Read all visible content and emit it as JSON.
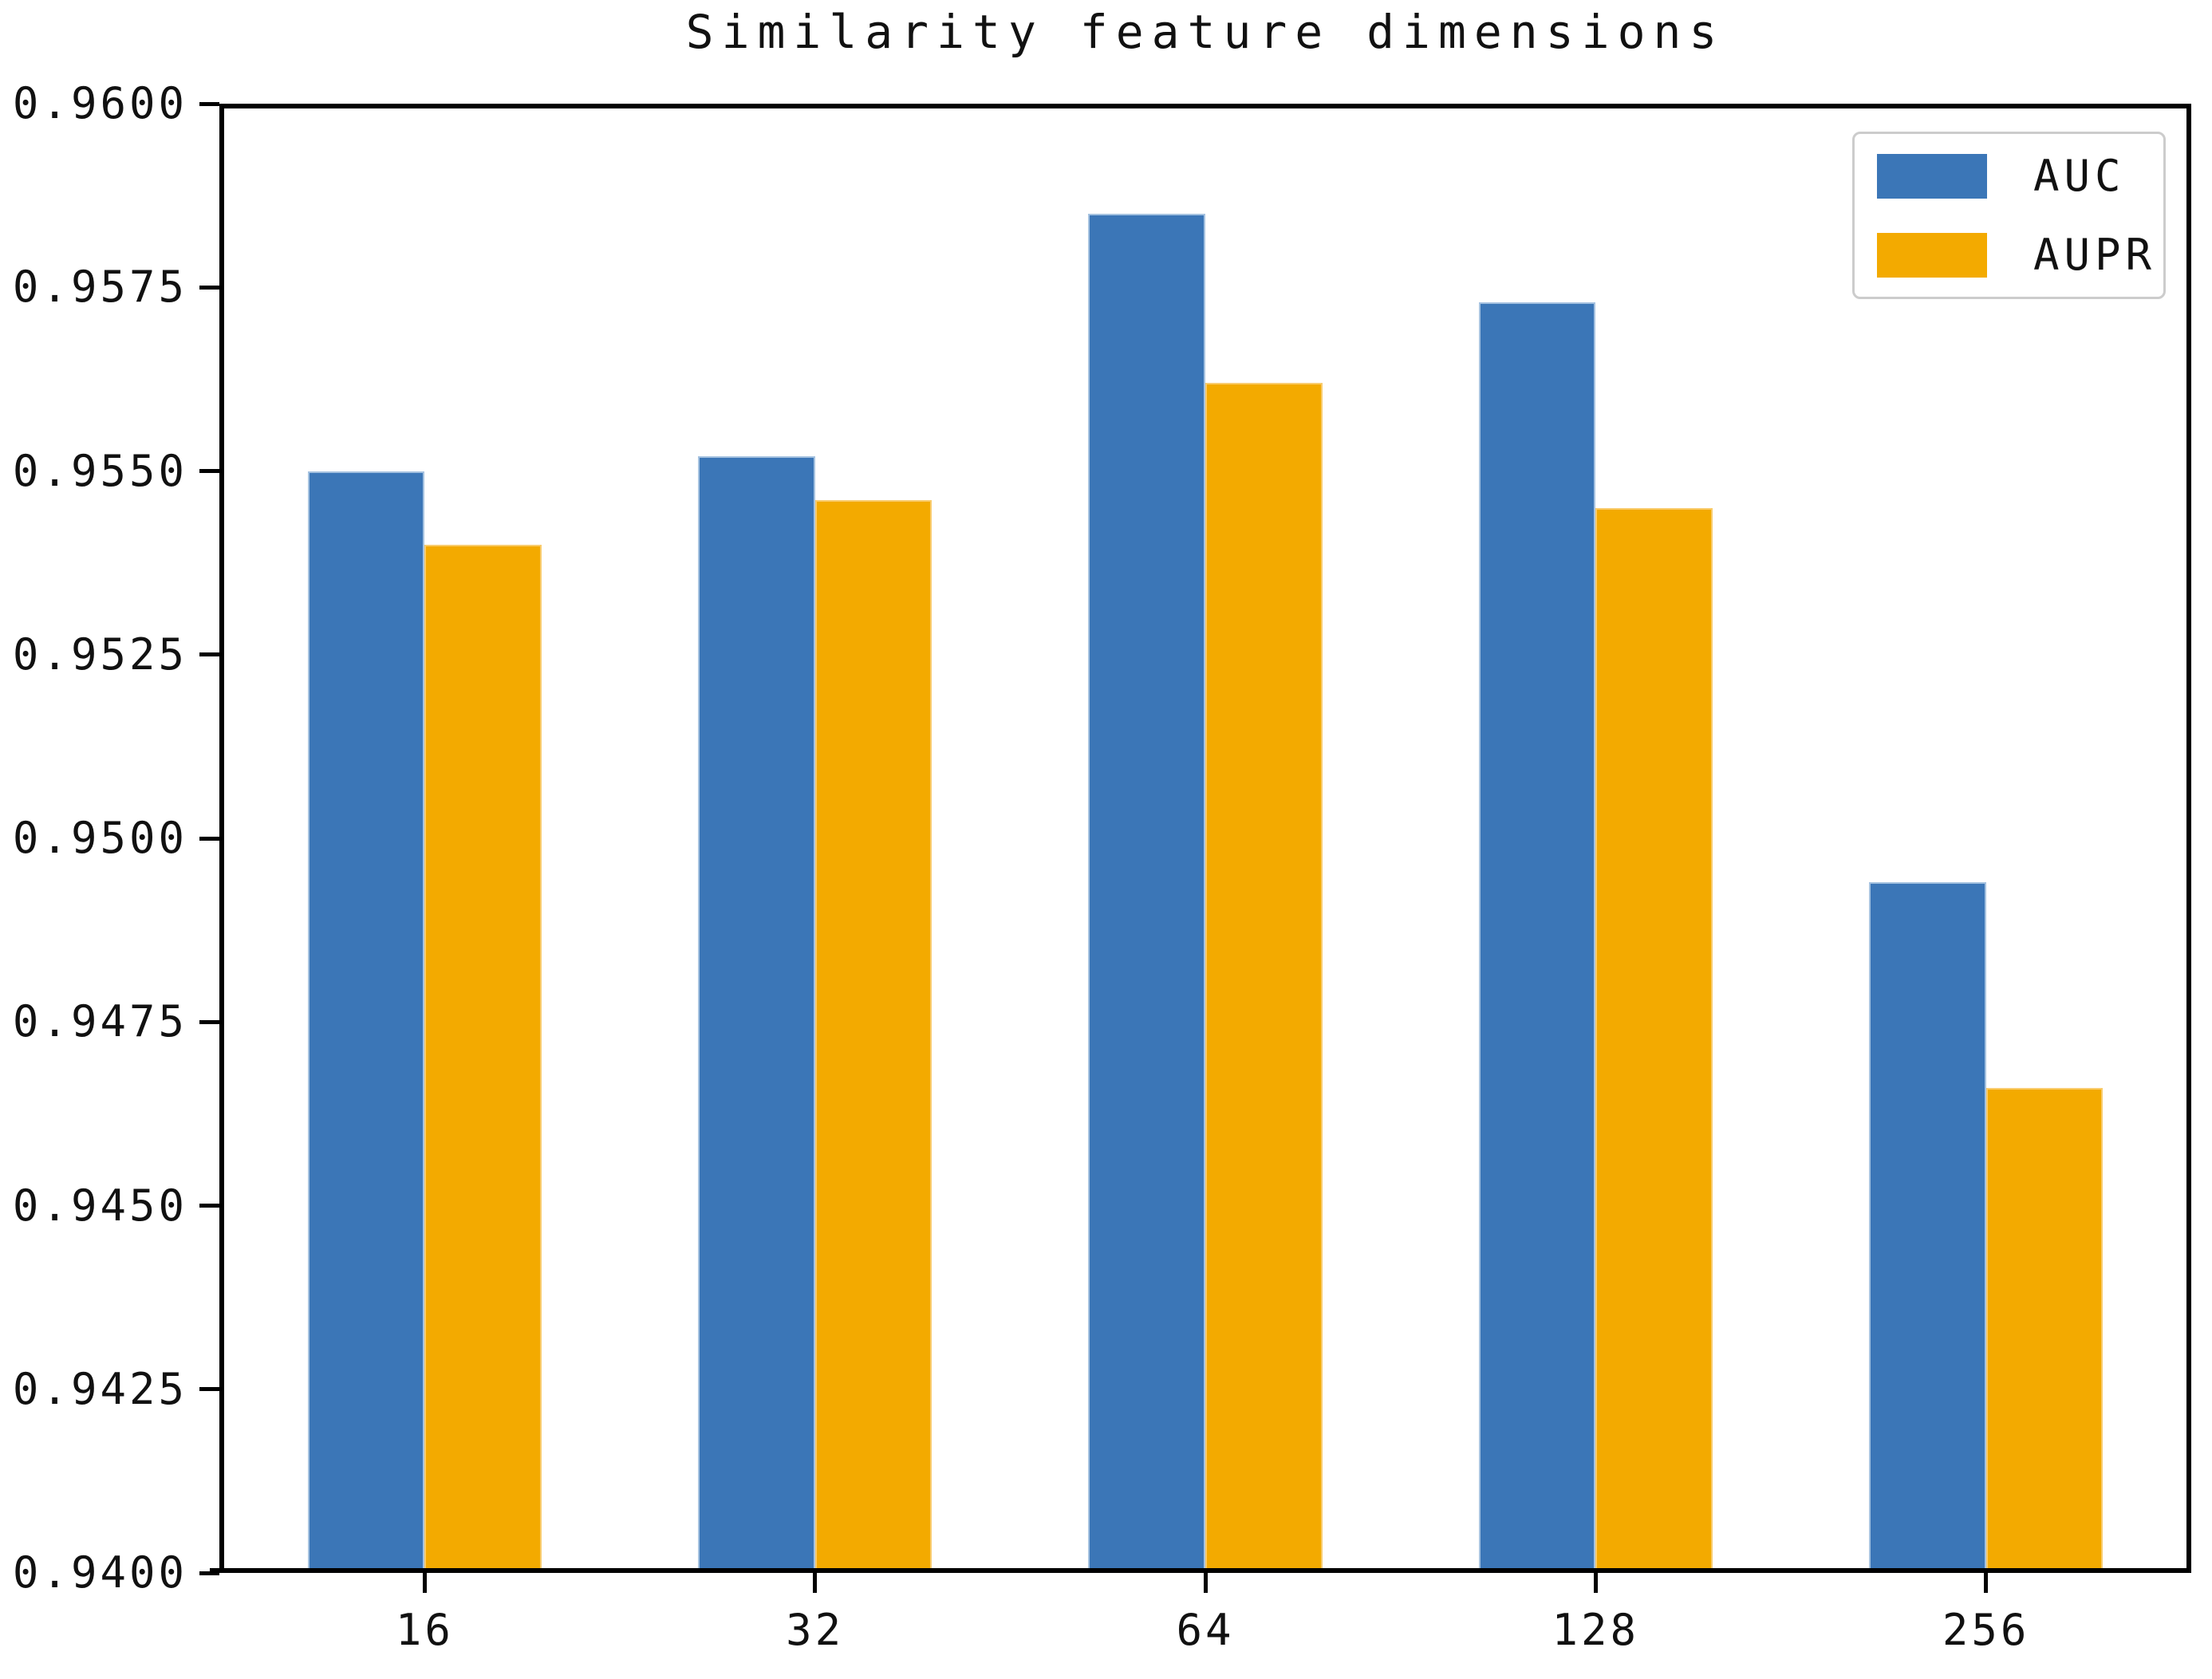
{
  "chart_data": {
    "type": "bar",
    "title": "Similarity feature dimensions",
    "categories": [
      "16",
      "32",
      "64",
      "128",
      "256"
    ],
    "series": [
      {
        "name": "AUC",
        "color": "#3B76B7",
        "edge_color": "#A5C2E0",
        "values": [
          0.955,
          0.9552,
          0.9585,
          0.9573,
          0.9494
        ]
      },
      {
        "name": "AUPR",
        "color": "#F3AA00",
        "edge_color": "#F9CC6E",
        "values": [
          0.954,
          0.9546,
          0.9562,
          0.9545,
          0.9466
        ]
      }
    ],
    "xlabel": "",
    "ylabel": "",
    "ylim": [
      0.94,
      0.96
    ],
    "ytick_labels": [
      "0.9600",
      "0.9575",
      "0.9550",
      "0.9525",
      "0.9500",
      "0.9475",
      "0.9450",
      "0.9425",
      "0.9400"
    ],
    "xlim_units": [
      -0.526,
      4.526
    ],
    "bar_width_units": 0.3,
    "bar_group_offset_units": 0.15,
    "grid": false,
    "legend": {
      "position": "upper right",
      "entries": [
        "AUC",
        "AUPR"
      ]
    }
  },
  "colors": {
    "background": "#ffffff",
    "axis": "#000000",
    "text": "#111111",
    "legend_border": "#cccccc"
  }
}
